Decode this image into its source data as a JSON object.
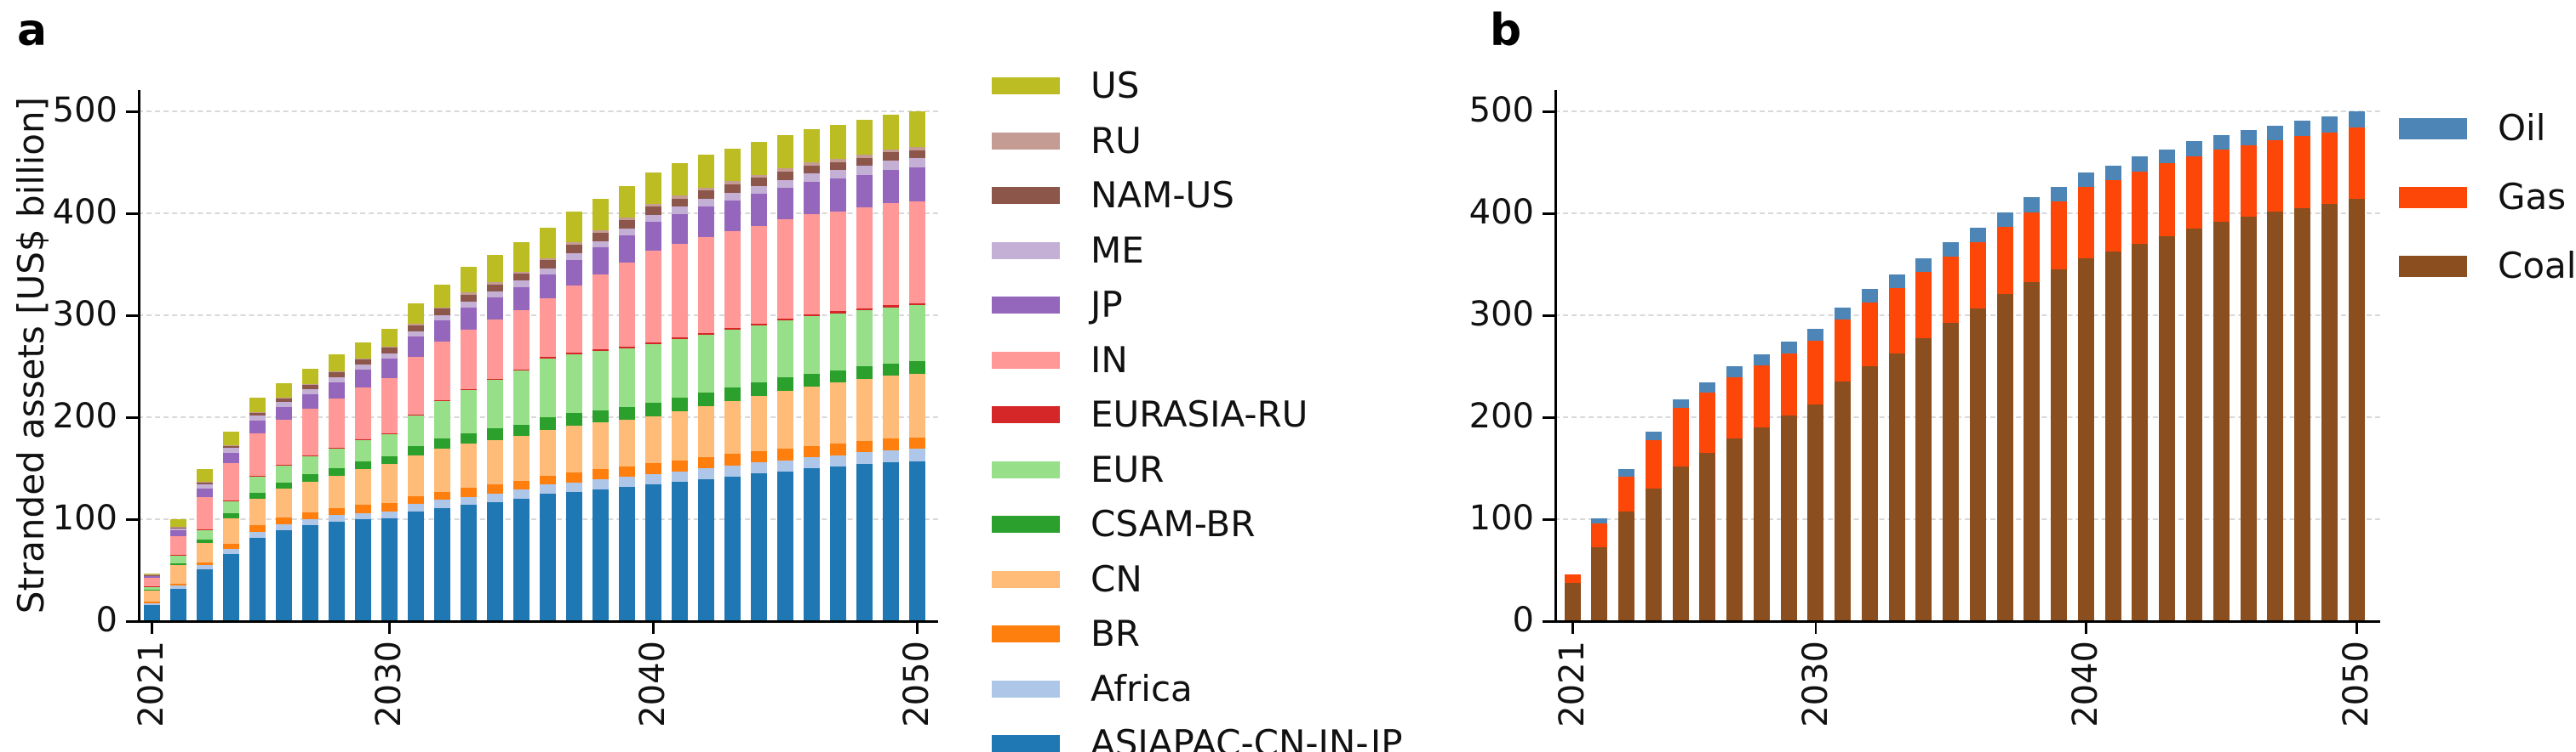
{
  "figure": {
    "background": "#ffffff",
    "units": "US$ billion"
  },
  "panels": {
    "a": {
      "letter": "a",
      "ylabel": "Stranded assets [US$ billion]"
    },
    "b": {
      "letter": "b"
    }
  },
  "chart_data": [
    {
      "id": "a",
      "type": "bar",
      "stacked": true,
      "title": "",
      "xlabel": "",
      "ylabel": "Stranded assets [US$ billion]",
      "x": [
        2021,
        2022,
        2023,
        2024,
        2025,
        2026,
        2027,
        2028,
        2029,
        2030,
        2031,
        2032,
        2033,
        2034,
        2035,
        2036,
        2037,
        2038,
        2039,
        2040,
        2041,
        2042,
        2043,
        2044,
        2045,
        2046,
        2047,
        2048,
        2049,
        2050
      ],
      "xticks_shown": [
        "2021",
        "2030",
        "2040",
        "2050"
      ],
      "ylim": [
        0,
        500
      ],
      "yticks": [
        0,
        100,
        200,
        300,
        400,
        500
      ],
      "grid": "horizontal-dashed",
      "legend_position": "right",
      "legend_order_top_to_bottom": [
        "US",
        "RU",
        "NAM-US",
        "ME",
        "JP",
        "IN",
        "EURASIA-RU",
        "EUR",
        "CSAM-BR",
        "CN",
        "BR",
        "Africa",
        "ASIAPAC-CN-IN-JP"
      ],
      "series": [
        {
          "name": "ASIAPAC-CN-IN-JP",
          "color": "#1f77b4",
          "values": [
            15,
            31,
            50,
            65,
            81,
            88,
            93,
            97,
            99,
            100,
            107,
            110,
            113,
            116,
            119,
            124,
            126,
            128,
            131,
            133,
            136,
            138,
            141,
            144,
            146,
            149,
            151,
            153,
            155,
            156
          ]
        },
        {
          "name": "Africa",
          "color": "#aec7e8",
          "values": [
            2,
            3,
            4,
            5,
            6,
            6,
            6,
            6,
            6,
            7,
            7,
            8,
            8,
            8,
            9,
            9,
            9,
            10,
            10,
            10,
            10,
            11,
            11,
            11,
            11,
            11,
            11,
            12,
            12,
            12
          ]
        },
        {
          "name": "BR",
          "color": "#ff7f0e",
          "values": [
            1,
            2,
            3,
            5,
            6,
            7,
            7,
            7,
            8,
            8,
            8,
            8,
            9,
            9,
            9,
            9,
            10,
            10,
            10,
            11,
            11,
            11,
            11,
            11,
            11,
            11,
            11,
            11,
            11,
            11
          ]
        },
        {
          "name": "CN",
          "color": "#ffbb78",
          "values": [
            11,
            18,
            19,
            25,
            26,
            28,
            30,
            32,
            35,
            38,
            40,
            42,
            43,
            44,
            44,
            45,
            46,
            46,
            46,
            46,
            48,
            50,
            52,
            54,
            57,
            58,
            60,
            61,
            62,
            63
          ]
        },
        {
          "name": "CSAM-BR",
          "color": "#2ca02c",
          "values": [
            1,
            2,
            3,
            5,
            6,
            6,
            7,
            7,
            8,
            8,
            9,
            10,
            10,
            11,
            11,
            12,
            12,
            12,
            12,
            13,
            13,
            13,
            13,
            13,
            13,
            13,
            12,
            12,
            12,
            12
          ]
        },
        {
          "name": "EUR",
          "color": "#98df8a",
          "values": [
            3,
            8,
            10,
            12,
            16,
            17,
            18,
            20,
            21,
            22,
            30,
            37,
            43,
            48,
            53,
            58,
            58,
            58,
            58,
            58,
            58,
            57,
            57,
            56,
            56,
            56,
            56,
            55,
            55,
            55
          ]
        },
        {
          "name": "EURASIA-RU",
          "color": "#d62728",
          "values": [
            0.3,
            0.4,
            0.5,
            0.5,
            0.5,
            0.5,
            0.5,
            0.5,
            0.5,
            0.5,
            1,
            1,
            1,
            1,
            1,
            1,
            1.5,
            1.5,
            1.5,
            1.5,
            1.5,
            2,
            2,
            2,
            2,
            2,
            2,
            2,
            2,
            2
          ]
        },
        {
          "name": "IN",
          "color": "#ff9896",
          "values": [
            8,
            18,
            31,
            37,
            42,
            44,
            46,
            48,
            51,
            54,
            56,
            57,
            58,
            58,
            58,
            58,
            66,
            74,
            82,
            90,
            92,
            94,
            95,
            96,
            97,
            98,
            98,
            99,
            100,
            100
          ]
        },
        {
          "name": "JP",
          "color": "#9467bd",
          "values": [
            2,
            6,
            9,
            10,
            12,
            13,
            14,
            16,
            17,
            19,
            20,
            21,
            22,
            22,
            23,
            23,
            25,
            26,
            27,
            28,
            29,
            30,
            30,
            31,
            31,
            32,
            32,
            32,
            33,
            33
          ]
        },
        {
          "name": "ME",
          "color": "#c5b0d5",
          "values": [
            0.5,
            1.5,
            4,
            4.5,
            5,
            5,
            5,
            5,
            5,
            5,
            5.5,
            5.5,
            5.5,
            5.5,
            6,
            6,
            6.5,
            6.5,
            7,
            7,
            7,
            7.5,
            7.5,
            8,
            8,
            8,
            8.5,
            8.5,
            9,
            9
          ]
        },
        {
          "name": "NAM-US",
          "color": "#8c564b",
          "values": [
            0.5,
            1,
            1.5,
            2,
            3,
            3,
            4,
            5,
            5,
            6,
            6,
            6,
            7,
            7,
            7,
            8,
            8,
            8,
            8,
            8,
            8,
            8,
            8,
            8,
            8,
            8,
            8,
            8,
            8,
            8
          ]
        },
        {
          "name": "RU",
          "color": "#c49c94",
          "values": [
            0.3,
            0.5,
            0.5,
            0.7,
            1,
            1,
            1,
            1,
            1,
            1,
            1.5,
            1.5,
            2,
            2,
            2,
            2,
            2.5,
            2.5,
            2.5,
            3,
            3,
            3,
            3,
            3,
            3,
            3,
            3,
            3,
            3,
            3
          ]
        },
        {
          "name": "US",
          "color": "#bcbd22",
          "values": [
            1.5,
            8,
            13,
            13,
            13.5,
            14,
            15,
            16,
            16,
            17.5,
            20,
            22,
            25,
            27,
            29,
            30,
            30.5,
            31,
            31,
            31,
            31.5,
            32,
            32,
            32.5,
            33,
            33,
            33,
            34,
            34,
            35
          ]
        }
      ]
    },
    {
      "id": "b",
      "type": "bar",
      "stacked": true,
      "title": "",
      "xlabel": "",
      "ylabel": "",
      "x": [
        2021,
        2022,
        2023,
        2024,
        2025,
        2026,
        2027,
        2028,
        2029,
        2030,
        2031,
        2032,
        2033,
        2034,
        2035,
        2036,
        2037,
        2038,
        2039,
        2040,
        2041,
        2042,
        2043,
        2044,
        2045,
        2046,
        2047,
        2048,
        2049,
        2050
      ],
      "xticks_shown": [
        "2021",
        "2030",
        "2040",
        "2050"
      ],
      "ylim": [
        0,
        500
      ],
      "yticks": [
        0,
        100,
        200,
        300,
        400,
        500
      ],
      "grid": "horizontal-dashed",
      "legend_position": "right",
      "legend_order_top_to_bottom": [
        "Oil",
        "Gas",
        "Coal"
      ],
      "series": [
        {
          "name": "Coal",
          "color": "#8a4e1f",
          "values": [
            37,
            72,
            107,
            129,
            151,
            164,
            178,
            189,
            201,
            212,
            234,
            249,
            262,
            277,
            292,
            306,
            320,
            332,
            344,
            355,
            362,
            369,
            377,
            384,
            391,
            396,
            401,
            404,
            408,
            413
          ]
        },
        {
          "name": "Gas",
          "color": "#fc4708",
          "values": [
            8,
            23,
            34,
            48,
            57,
            59,
            60,
            61,
            61,
            62,
            61,
            63,
            64,
            65,
            65,
            65,
            66,
            68,
            67,
            70,
            70,
            71,
            71,
            71,
            71,
            70,
            70,
            71,
            70,
            70
          ]
        },
        {
          "name": "Oil",
          "color": "#4d86b6",
          "values": [
            0,
            5,
            7,
            8,
            9,
            10,
            11,
            11,
            11,
            12,
            12,
            13,
            13,
            13,
            14,
            14,
            14,
            15,
            14,
            14,
            14,
            15,
            14,
            15,
            14,
            15,
            14,
            15,
            16,
            16
          ]
        }
      ]
    }
  ]
}
